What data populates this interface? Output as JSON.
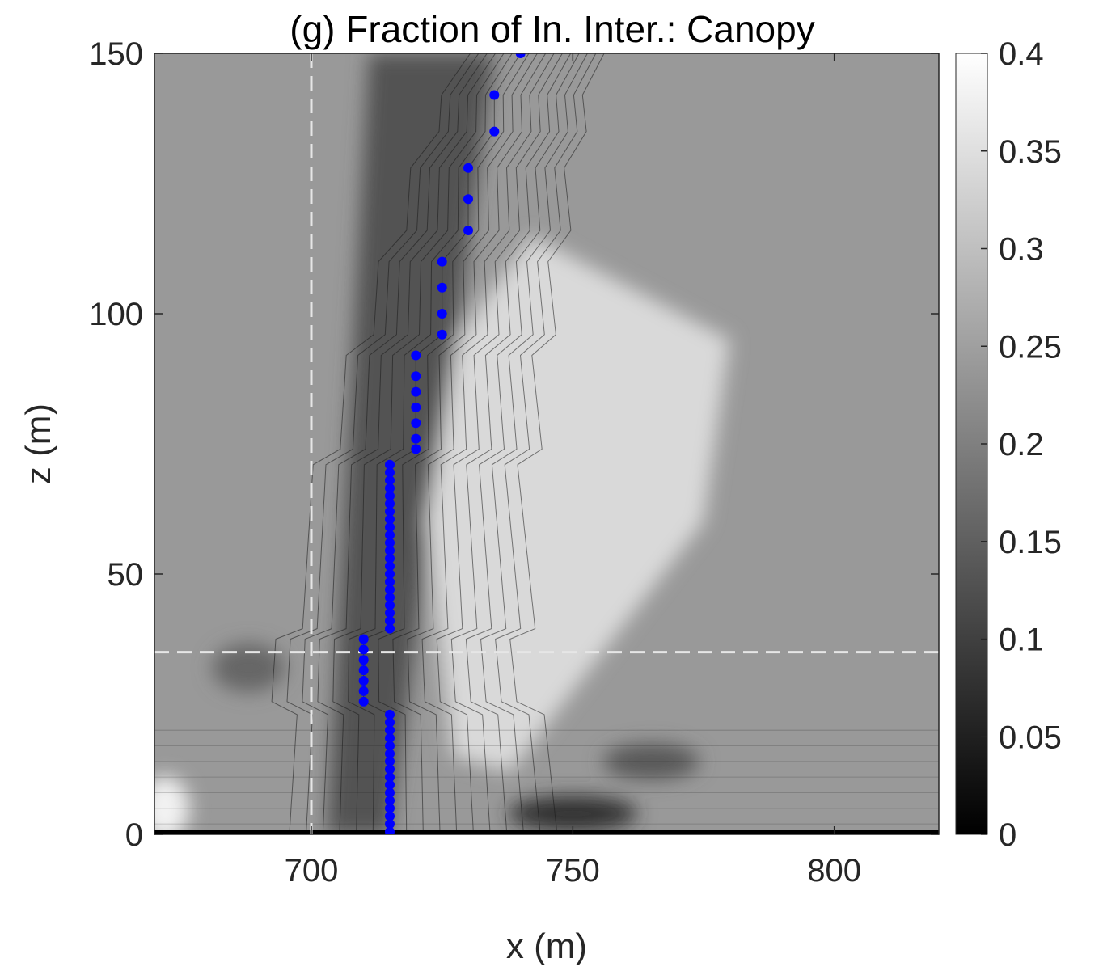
{
  "chart_data": {
    "type": "heatmap",
    "title": "(g) Fraction of In. Inter.: Canopy",
    "xlabel": "x (m)",
    "ylabel": "z (m)",
    "xlim": [
      670,
      820
    ],
    "ylim": [
      0,
      150
    ],
    "xticks": [
      700,
      750,
      800
    ],
    "yticks": [
      0,
      50,
      100,
      150
    ],
    "colorbar": {
      "range": [
        0,
        0.4
      ],
      "colormap": "gray",
      "ticks": [
        "0",
        "0.05",
        "0.1",
        "0.15",
        "0.2",
        "0.25",
        "0.3",
        "0.35",
        "0.4"
      ]
    },
    "reference_lines": {
      "vertical_x": 700,
      "horizontal_z": 35,
      "style": "dashed",
      "color": "#e6e6e6"
    },
    "field_summary": {
      "background_value": 0.24,
      "features": [
        {
          "description": "dark band",
          "x_range": [
            703,
            725
          ],
          "value": 0.13
        },
        {
          "description": "bright plume",
          "x_range": [
            730,
            780
          ],
          "value": 0.34
        },
        {
          "description": "bright spot near ground",
          "x": 672,
          "z": 5,
          "value": 0.38
        },
        {
          "description": "dark spot near ground",
          "x": 750,
          "z": 4,
          "value": 0.08
        }
      ]
    },
    "series": [
      {
        "marker_color": "#0000ff",
        "points": [
          [
            740,
            150
          ],
          [
            735,
            142
          ],
          [
            735,
            135
          ],
          [
            730,
            128
          ],
          [
            730,
            122
          ],
          [
            730,
            116
          ],
          [
            725,
            110
          ],
          [
            725,
            105
          ],
          [
            725,
            100
          ],
          [
            725,
            96
          ],
          [
            720,
            92
          ],
          [
            720,
            88
          ],
          [
            720,
            85
          ],
          [
            720,
            82
          ],
          [
            720,
            79
          ],
          [
            720,
            76
          ],
          [
            720,
            74
          ],
          [
            715,
            71
          ],
          [
            715,
            69.5
          ],
          [
            715,
            68
          ],
          [
            715,
            66.5
          ],
          [
            715,
            65
          ],
          [
            715,
            63.5
          ],
          [
            715,
            62
          ],
          [
            715,
            60.5
          ],
          [
            715,
            59
          ],
          [
            715,
            57.5
          ],
          [
            715,
            56
          ],
          [
            715,
            54.5
          ],
          [
            715,
            53
          ],
          [
            715,
            51.5
          ],
          [
            715,
            50
          ],
          [
            715,
            48.5
          ],
          [
            715,
            47
          ],
          [
            715,
            45.5
          ],
          [
            715,
            44
          ],
          [
            715,
            42.5
          ],
          [
            715,
            41
          ],
          [
            715,
            39.5
          ],
          [
            710,
            37.5
          ],
          [
            710,
            35.5
          ],
          [
            710,
            33.5
          ],
          [
            710,
            31.5
          ],
          [
            710,
            29.5
          ],
          [
            710,
            27.5
          ],
          [
            710,
            25.5
          ],
          [
            715,
            23
          ],
          [
            715,
            21.5
          ],
          [
            715,
            20
          ],
          [
            715,
            18.5
          ],
          [
            715,
            17
          ],
          [
            715,
            15.5
          ],
          [
            715,
            14
          ],
          [
            715,
            12.5
          ],
          [
            715,
            11
          ],
          [
            715,
            9.5
          ],
          [
            715,
            8
          ],
          [
            715,
            6.5
          ],
          [
            715,
            5
          ],
          [
            715,
            3.5
          ],
          [
            715,
            2
          ],
          [
            715,
            0.5
          ]
        ]
      }
    ]
  }
}
